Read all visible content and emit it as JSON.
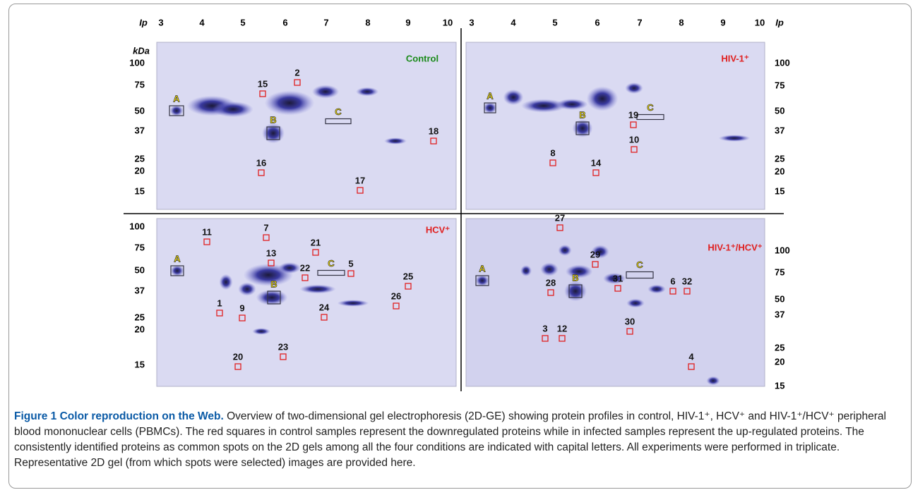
{
  "figure": {
    "pi_axis": {
      "label": "Ip",
      "ticks": [
        "3",
        "4",
        "5",
        "6",
        "7",
        "8",
        "9",
        "10"
      ]
    },
    "kda_label": "kDa",
    "panels": [
      {
        "label": "Control",
        "yticks": [
          "100",
          "75",
          "50",
          "37",
          "25",
          "20",
          "15"
        ],
        "markers": [
          "A",
          "B",
          "C"
        ],
        "spots": [
          "15",
          "2",
          "16",
          "17",
          "18"
        ]
      },
      {
        "label": "HIV-1⁺",
        "yticks": [
          "100",
          "75",
          "50",
          "37",
          "25",
          "20",
          "15"
        ],
        "markers": [
          "A",
          "B",
          "C"
        ],
        "spots": [
          "19",
          "10",
          "8",
          "14"
        ]
      },
      {
        "label": "HCV⁺",
        "yticks": [
          "100",
          "75",
          "50",
          "37",
          "25",
          "20",
          "15"
        ],
        "markers": [
          "A",
          "B",
          "C"
        ],
        "spots": [
          "11",
          "7",
          "21",
          "13",
          "22",
          "5",
          "25",
          "1",
          "9",
          "24",
          "26",
          "23",
          "20"
        ]
      },
      {
        "label": "HIV-1⁺/HCV⁺",
        "yticks": [
          "100",
          "75",
          "50",
          "37",
          "25",
          "20",
          "15"
        ],
        "markers": [
          "A",
          "B",
          "C"
        ],
        "spots": [
          "27",
          "29",
          "28",
          "31",
          "6",
          "32",
          "30",
          "3",
          "12",
          "4"
        ]
      }
    ],
    "caption": {
      "title": "Figure 1 Color reproduction on the Web.",
      "text": "Overview of two-dimensional gel electrophoresis (2D-GE) showing protein profiles in control, HIV-1⁺, HCV⁺ and HIV-1⁺/HCV⁺ peripheral blood mononuclear cells (PBMCs). The red squares in control samples represent the downregulated proteins while in infected samples represent the up-regulated proteins. The consistently identified proteins as common spots on the 2D gels among all the four conditions are indicated with capital letters. All experiments were performed in triplicate. Representative 2D gel (from which spots were selected) images are provided here."
    }
  }
}
